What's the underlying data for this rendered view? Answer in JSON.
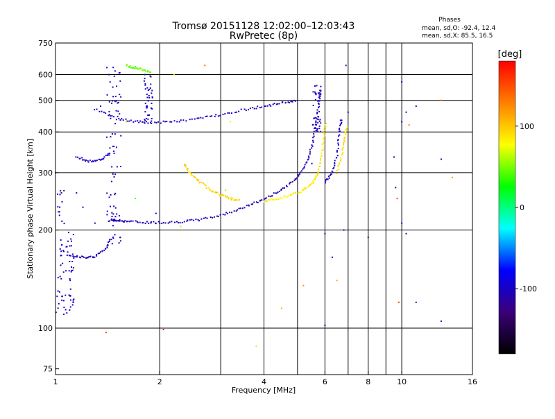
{
  "chart_data": {
    "type": "scatter",
    "title": "Tromsø 20151128 12:02:00–12:03:43",
    "subtitle": "RwPretec (8p)",
    "stats": {
      "heading": "Phases",
      "line1": "mean, sd,O: -92.4, 12.4",
      "line2": "mean, sd,X:  85.5, 16.5"
    },
    "xlabel": "Frequency [MHz]",
    "ylabel": "Stationary phase Virtual Height [km]",
    "x_scale": "log",
    "y_scale": "log",
    "xlim": [
      1,
      16
    ],
    "ylim": [
      72,
      750
    ],
    "x_ticks": [
      1,
      2,
      4,
      6,
      8,
      10,
      16
    ],
    "x_tick_labels": [
      "1",
      "2",
      "4",
      "6",
      "8",
      "10",
      "16"
    ],
    "x_gridlines": [
      2,
      4,
      6,
      8,
      10
    ],
    "x_minor_gridlines": [
      3,
      5,
      7,
      9
    ],
    "y_ticks": [
      75,
      100,
      200,
      300,
      400,
      500,
      600,
      750
    ],
    "y_tick_labels": [
      "75",
      "100",
      "200",
      "300",
      "400",
      "500",
      "600",
      "750"
    ],
    "y_gridlines": [
      100,
      200,
      300,
      400,
      500,
      600
    ],
    "grid": true,
    "colorbar": {
      "label": "[deg]",
      "range": [
        -180,
        180
      ],
      "ticks": [
        100,
        0,
        -100
      ],
      "tick_labels": [
        "100",
        "0",
        "-100"
      ],
      "colors": [
        "#000000",
        "#3a007a",
        "#0000ff",
        "#00ffff",
        "#00ff00",
        "#ffff00",
        "#ff8000",
        "#ff0000"
      ]
    },
    "traces": [
      {
        "name_hint": "F2 O-mode lower",
        "phase": -105,
        "points": [
          [
            1.45,
            215
          ],
          [
            1.5,
            214
          ],
          [
            1.6,
            213
          ],
          [
            1.8,
            211
          ],
          [
            2.0,
            211
          ],
          [
            2.3,
            212
          ],
          [
            2.6,
            215
          ],
          [
            3.0,
            222
          ],
          [
            3.4,
            232
          ],
          [
            3.8,
            243
          ],
          [
            4.2,
            255
          ],
          [
            4.6,
            270
          ],
          [
            5.0,
            290
          ],
          [
            5.3,
            320
          ],
          [
            5.5,
            360
          ],
          [
            5.65,
            420
          ],
          [
            5.75,
            480
          ],
          [
            5.82,
            540
          ]
        ]
      },
      {
        "name_hint": "F2 X-mode",
        "phase": 85,
        "points": [
          [
            4.0,
            245
          ],
          [
            4.4,
            250
          ],
          [
            4.8,
            256
          ],
          [
            5.2,
            265
          ],
          [
            5.5,
            278
          ],
          [
            5.7,
            295
          ],
          [
            5.85,
            330
          ],
          [
            5.95,
            380
          ],
          [
            6.02,
            430
          ]
        ]
      },
      {
        "name_hint": "X-mode arc",
        "phase": 95,
        "points": [
          [
            2.35,
            320
          ],
          [
            2.45,
            298
          ],
          [
            2.6,
            282
          ],
          [
            2.8,
            266
          ],
          [
            3.0,
            256
          ],
          [
            3.2,
            250
          ],
          [
            3.4,
            246
          ]
        ]
      },
      {
        "name_hint": "F2 upper",
        "phase": -100,
        "points": [
          [
            1.3,
            470
          ],
          [
            1.5,
            440
          ],
          [
            1.7,
            430
          ],
          [
            1.9,
            427
          ],
          [
            2.2,
            430
          ],
          [
            2.6,
            440
          ],
          [
            3.0,
            452
          ],
          [
            3.5,
            468
          ],
          [
            4.0,
            480
          ],
          [
            4.5,
            490
          ],
          [
            5.0,
            500
          ]
        ]
      },
      {
        "name_hint": "E layer",
        "phase": -100,
        "points": [
          [
            1.15,
            335
          ],
          [
            1.25,
            325
          ],
          [
            1.35,
            328
          ],
          [
            1.45,
            345
          ]
        ]
      },
      {
        "name_hint": "low trace",
        "phase": -105,
        "points": [
          [
            1.1,
            168
          ],
          [
            1.2,
            165
          ],
          [
            1.3,
            166
          ],
          [
            1.4,
            175
          ],
          [
            1.45,
            190
          ]
        ]
      },
      {
        "name_hint": "cusp 6.5",
        "phase": -100,
        "points": [
          [
            6.0,
            280
          ],
          [
            6.3,
            300
          ],
          [
            6.5,
            340
          ],
          [
            6.6,
            400
          ],
          [
            6.7,
            440
          ]
        ]
      },
      {
        "name_hint": "X cusp 6.8",
        "phase": 90,
        "points": [
          [
            6.5,
            300
          ],
          [
            6.7,
            340
          ],
          [
            6.85,
            380
          ],
          [
            6.95,
            420
          ]
        ]
      },
      {
        "name_hint": "green cluster",
        "phase": 45,
        "points": [
          [
            1.6,
            640
          ],
          [
            1.7,
            630
          ],
          [
            1.8,
            620
          ],
          [
            1.9,
            612
          ]
        ]
      }
    ],
    "vertical_bands": [
      {
        "phase": -100,
        "x": 1.45,
        "y_range": [
          180,
          640
        ]
      },
      {
        "phase": -100,
        "x": 1.5,
        "y_range": [
          180,
          640
        ]
      },
      {
        "phase": -100,
        "x": 1.85,
        "y_range": [
          430,
          600
        ]
      },
      {
        "phase": -100,
        "x": 1.03,
        "y_range": [
          110,
          270
        ]
      },
      {
        "phase": -100,
        "x": 1.1,
        "y_range": [
          110,
          200
        ]
      },
      {
        "phase": -100,
        "x": 5.7,
        "y_range": [
          400,
          560
        ]
      }
    ],
    "scattered_points": [
      {
        "x": 1.0,
        "y": 300,
        "phase": -110
      },
      {
        "x": 1.15,
        "y": 260,
        "phase": -100
      },
      {
        "x": 1.2,
        "y": 235,
        "phase": -100
      },
      {
        "x": 1.3,
        "y": 210,
        "phase": -100
      },
      {
        "x": 1.35,
        "y": 480,
        "phase": -100
      },
      {
        "x": 1.4,
        "y": 97,
        "phase": 150
      },
      {
        "x": 1.6,
        "y": 430,
        "phase": 60
      },
      {
        "x": 1.7,
        "y": 250,
        "phase": 40
      },
      {
        "x": 1.95,
        "y": 225,
        "phase": -95
      },
      {
        "x": 2.05,
        "y": 99,
        "phase": 170
      },
      {
        "x": 2.2,
        "y": 600,
        "phase": 90
      },
      {
        "x": 2.3,
        "y": 205,
        "phase": 95
      },
      {
        "x": 2.7,
        "y": 640,
        "phase": 140
      },
      {
        "x": 3.1,
        "y": 265,
        "phase": 55
      },
      {
        "x": 3.2,
        "y": 430,
        "phase": 70
      },
      {
        "x": 3.8,
        "y": 88,
        "phase": 90
      },
      {
        "x": 4.5,
        "y": 115,
        "phase": 110
      },
      {
        "x": 5.2,
        "y": 135,
        "phase": 120
      },
      {
        "x": 5.5,
        "y": 320,
        "phase": -100
      },
      {
        "x": 6.0,
        "y": 102,
        "phase": -90
      },
      {
        "x": 6.0,
        "y": 195,
        "phase": -100
      },
      {
        "x": 6.3,
        "y": 165,
        "phase": -90
      },
      {
        "x": 6.5,
        "y": 140,
        "phase": 110
      },
      {
        "x": 6.8,
        "y": 200,
        "phase": -90
      },
      {
        "x": 6.9,
        "y": 640,
        "phase": -100
      },
      {
        "x": 7.0,
        "y": 460,
        "phase": -100
      },
      {
        "x": 8.0,
        "y": 190,
        "phase": -120
      },
      {
        "x": 9.5,
        "y": 335,
        "phase": -110
      },
      {
        "x": 9.6,
        "y": 270,
        "phase": -110
      },
      {
        "x": 9.7,
        "y": 250,
        "phase": 150
      },
      {
        "x": 9.8,
        "y": 120,
        "phase": 160
      },
      {
        "x": 10.0,
        "y": 570,
        "phase": -100
      },
      {
        "x": 10.0,
        "y": 430,
        "phase": -90
      },
      {
        "x": 10.0,
        "y": 210,
        "phase": -100
      },
      {
        "x": 10.3,
        "y": 460,
        "phase": -90
      },
      {
        "x": 10.3,
        "y": 195,
        "phase": -95
      },
      {
        "x": 10.5,
        "y": 420,
        "phase": 130
      },
      {
        "x": 11.0,
        "y": 480,
        "phase": -100
      },
      {
        "x": 11.0,
        "y": 120,
        "phase": -100
      },
      {
        "x": 13.0,
        "y": 500,
        "phase": 140
      },
      {
        "x": 13.0,
        "y": 330,
        "phase": -120
      },
      {
        "x": 13.0,
        "y": 105,
        "phase": -120
      },
      {
        "x": 14.0,
        "y": 290,
        "phase": 120
      }
    ]
  }
}
